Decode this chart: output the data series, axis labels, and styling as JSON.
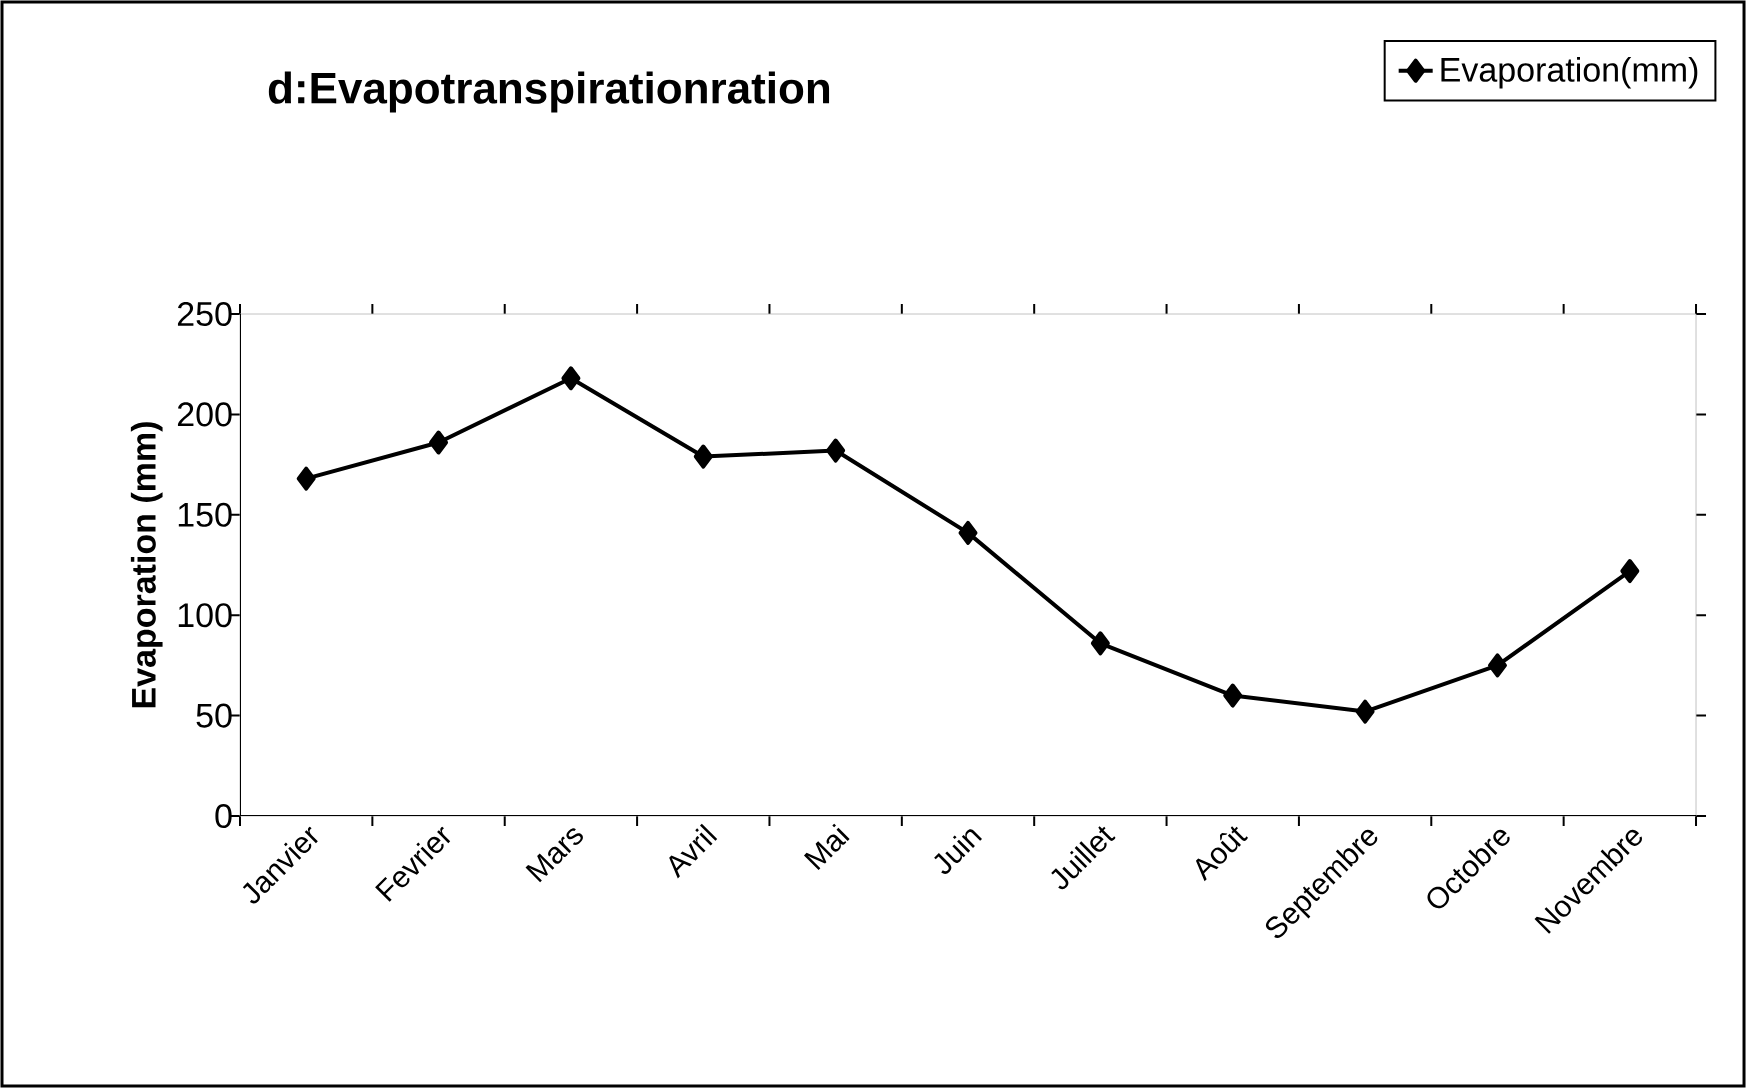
{
  "chart_data": {
    "type": "line",
    "title": "d:Evapotranspirationration",
    "ylabel": "Evaporation (mm)",
    "categories": [
      "Janvier",
      "Fevrier",
      "Mars",
      "Avril",
      "Mai",
      "Juin",
      "Juillet",
      "Août",
      "Septembre",
      "Octobre",
      "Novembre"
    ],
    "series": [
      {
        "name": "Evaporation(mm)",
        "color": "#000000",
        "values": [
          168,
          186,
          218,
          179,
          182,
          141,
          86,
          60,
          52,
          75,
          122
        ]
      }
    ],
    "ylim": [
      0,
      250
    ],
    "yticks": [
      0,
      50,
      100,
      150,
      200,
      250
    ],
    "grid": false,
    "legend": "top right",
    "marker": "diamond",
    "line_style": "solid"
  }
}
